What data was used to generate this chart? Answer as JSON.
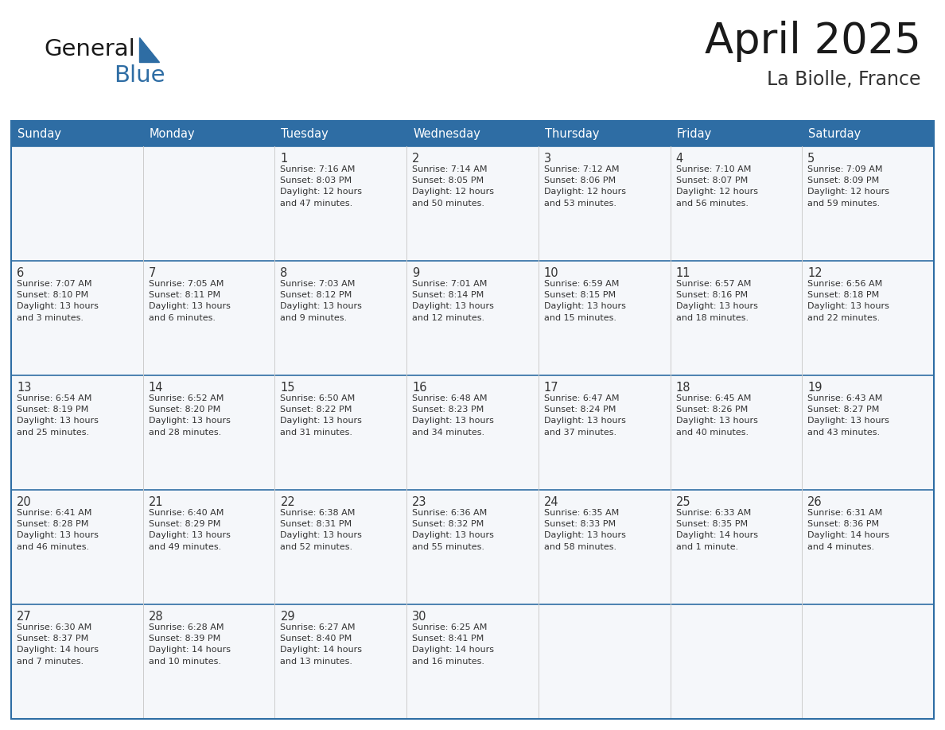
{
  "title": "April 2025",
  "subtitle": "La Biolle, France",
  "header_bg": "#2E6DA4",
  "header_text_color": "#FFFFFF",
  "text_color": "#333333",
  "border_color": "#2E6DA4",
  "grid_color": "#AAAAAA",
  "days_of_week": [
    "Sunday",
    "Monday",
    "Tuesday",
    "Wednesday",
    "Thursday",
    "Friday",
    "Saturday"
  ],
  "calendar_data": [
    [
      {
        "day": "",
        "info": ""
      },
      {
        "day": "",
        "info": ""
      },
      {
        "day": "1",
        "info": "Sunrise: 7:16 AM\nSunset: 8:03 PM\nDaylight: 12 hours\nand 47 minutes."
      },
      {
        "day": "2",
        "info": "Sunrise: 7:14 AM\nSunset: 8:05 PM\nDaylight: 12 hours\nand 50 minutes."
      },
      {
        "day": "3",
        "info": "Sunrise: 7:12 AM\nSunset: 8:06 PM\nDaylight: 12 hours\nand 53 minutes."
      },
      {
        "day": "4",
        "info": "Sunrise: 7:10 AM\nSunset: 8:07 PM\nDaylight: 12 hours\nand 56 minutes."
      },
      {
        "day": "5",
        "info": "Sunrise: 7:09 AM\nSunset: 8:09 PM\nDaylight: 12 hours\nand 59 minutes."
      }
    ],
    [
      {
        "day": "6",
        "info": "Sunrise: 7:07 AM\nSunset: 8:10 PM\nDaylight: 13 hours\nand 3 minutes."
      },
      {
        "day": "7",
        "info": "Sunrise: 7:05 AM\nSunset: 8:11 PM\nDaylight: 13 hours\nand 6 minutes."
      },
      {
        "day": "8",
        "info": "Sunrise: 7:03 AM\nSunset: 8:12 PM\nDaylight: 13 hours\nand 9 minutes."
      },
      {
        "day": "9",
        "info": "Sunrise: 7:01 AM\nSunset: 8:14 PM\nDaylight: 13 hours\nand 12 minutes."
      },
      {
        "day": "10",
        "info": "Sunrise: 6:59 AM\nSunset: 8:15 PM\nDaylight: 13 hours\nand 15 minutes."
      },
      {
        "day": "11",
        "info": "Sunrise: 6:57 AM\nSunset: 8:16 PM\nDaylight: 13 hours\nand 18 minutes."
      },
      {
        "day": "12",
        "info": "Sunrise: 6:56 AM\nSunset: 8:18 PM\nDaylight: 13 hours\nand 22 minutes."
      }
    ],
    [
      {
        "day": "13",
        "info": "Sunrise: 6:54 AM\nSunset: 8:19 PM\nDaylight: 13 hours\nand 25 minutes."
      },
      {
        "day": "14",
        "info": "Sunrise: 6:52 AM\nSunset: 8:20 PM\nDaylight: 13 hours\nand 28 minutes."
      },
      {
        "day": "15",
        "info": "Sunrise: 6:50 AM\nSunset: 8:22 PM\nDaylight: 13 hours\nand 31 minutes."
      },
      {
        "day": "16",
        "info": "Sunrise: 6:48 AM\nSunset: 8:23 PM\nDaylight: 13 hours\nand 34 minutes."
      },
      {
        "day": "17",
        "info": "Sunrise: 6:47 AM\nSunset: 8:24 PM\nDaylight: 13 hours\nand 37 minutes."
      },
      {
        "day": "18",
        "info": "Sunrise: 6:45 AM\nSunset: 8:26 PM\nDaylight: 13 hours\nand 40 minutes."
      },
      {
        "day": "19",
        "info": "Sunrise: 6:43 AM\nSunset: 8:27 PM\nDaylight: 13 hours\nand 43 minutes."
      }
    ],
    [
      {
        "day": "20",
        "info": "Sunrise: 6:41 AM\nSunset: 8:28 PM\nDaylight: 13 hours\nand 46 minutes."
      },
      {
        "day": "21",
        "info": "Sunrise: 6:40 AM\nSunset: 8:29 PM\nDaylight: 13 hours\nand 49 minutes."
      },
      {
        "day": "22",
        "info": "Sunrise: 6:38 AM\nSunset: 8:31 PM\nDaylight: 13 hours\nand 52 minutes."
      },
      {
        "day": "23",
        "info": "Sunrise: 6:36 AM\nSunset: 8:32 PM\nDaylight: 13 hours\nand 55 minutes."
      },
      {
        "day": "24",
        "info": "Sunrise: 6:35 AM\nSunset: 8:33 PM\nDaylight: 13 hours\nand 58 minutes."
      },
      {
        "day": "25",
        "info": "Sunrise: 6:33 AM\nSunset: 8:35 PM\nDaylight: 14 hours\nand 1 minute."
      },
      {
        "day": "26",
        "info": "Sunrise: 6:31 AM\nSunset: 8:36 PM\nDaylight: 14 hours\nand 4 minutes."
      }
    ],
    [
      {
        "day": "27",
        "info": "Sunrise: 6:30 AM\nSunset: 8:37 PM\nDaylight: 14 hours\nand 7 minutes."
      },
      {
        "day": "28",
        "info": "Sunrise: 6:28 AM\nSunset: 8:39 PM\nDaylight: 14 hours\nand 10 minutes."
      },
      {
        "day": "29",
        "info": "Sunrise: 6:27 AM\nSunset: 8:40 PM\nDaylight: 14 hours\nand 13 minutes."
      },
      {
        "day": "30",
        "info": "Sunrise: 6:25 AM\nSunset: 8:41 PM\nDaylight: 14 hours\nand 16 minutes."
      },
      {
        "day": "",
        "info": ""
      },
      {
        "day": "",
        "info": ""
      },
      {
        "day": "",
        "info": ""
      }
    ]
  ],
  "logo_color_general": "#1a1a1a",
  "logo_color_blue": "#2E6DA4",
  "logo_triangle_color": "#2E6DA4",
  "fig_width": 11.88,
  "fig_height": 9.18,
  "dpi": 100
}
